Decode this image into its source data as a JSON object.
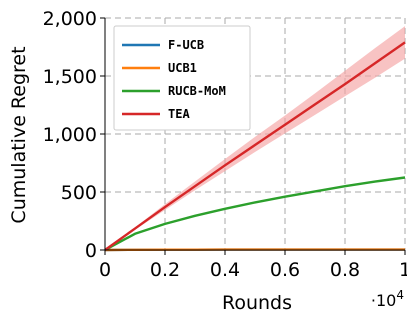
{
  "chart_data": {
    "type": "line",
    "xlabel": "Rounds",
    "ylabel": "Cumulative Regret",
    "x_multiplier_label": "·10",
    "x_multiplier_exponent": "4",
    "xlim": [
      0,
      10000
    ],
    "ylim": [
      0,
      2000
    ],
    "x_ticks": [
      0,
      2000,
      4000,
      6000,
      8000,
      10000
    ],
    "x_tick_labels": [
      "0",
      "0.2",
      "0.4",
      "0.6",
      "0.8",
      "1"
    ],
    "y_ticks": [
      0,
      500,
      1000,
      1500,
      2000
    ],
    "y_tick_labels": [
      "0",
      "500",
      "1,000",
      "1,500",
      "2,000"
    ],
    "grid": true,
    "legend_position": "top-left",
    "series": [
      {
        "name": "F-UCB",
        "color": "#1f77b4",
        "x": [
          0,
          1000,
          2000,
          3000,
          4000,
          5000,
          6000,
          7000,
          8000,
          9000,
          10000
        ],
        "y": [
          0,
          2,
          3,
          3,
          4,
          4,
          4,
          4,
          4,
          4,
          4
        ]
      },
      {
        "name": "UCB1",
        "color": "#ff7f0e",
        "x": [
          0,
          1000,
          2000,
          3000,
          4000,
          5000,
          6000,
          7000,
          8000,
          9000,
          10000
        ],
        "y": [
          0,
          2,
          3,
          3,
          4,
          4,
          4,
          4,
          4,
          4,
          4
        ]
      },
      {
        "name": "RUCB-MoM",
        "color": "#2ca02c",
        "x": [
          0,
          1000,
          2000,
          3000,
          4000,
          5000,
          6000,
          7000,
          8000,
          9000,
          10000
        ],
        "y": [
          0,
          140,
          225,
          295,
          355,
          410,
          460,
          505,
          550,
          590,
          625
        ]
      },
      {
        "name": "TEA",
        "color": "#d62728",
        "band_color": "#f4a3a3",
        "x": [
          0,
          1000,
          2000,
          3000,
          4000,
          5000,
          6000,
          7000,
          8000,
          9000,
          10000
        ],
        "y": [
          0,
          185,
          370,
          550,
          730,
          905,
          1080,
          1255,
          1430,
          1610,
          1790
        ],
        "y_lower": [
          0,
          175,
          345,
          515,
          680,
          845,
          1005,
          1165,
          1325,
          1485,
          1650
        ],
        "y_upper": [
          0,
          195,
          395,
          590,
          785,
          975,
          1160,
          1350,
          1545,
          1740,
          1930
        ]
      }
    ]
  }
}
